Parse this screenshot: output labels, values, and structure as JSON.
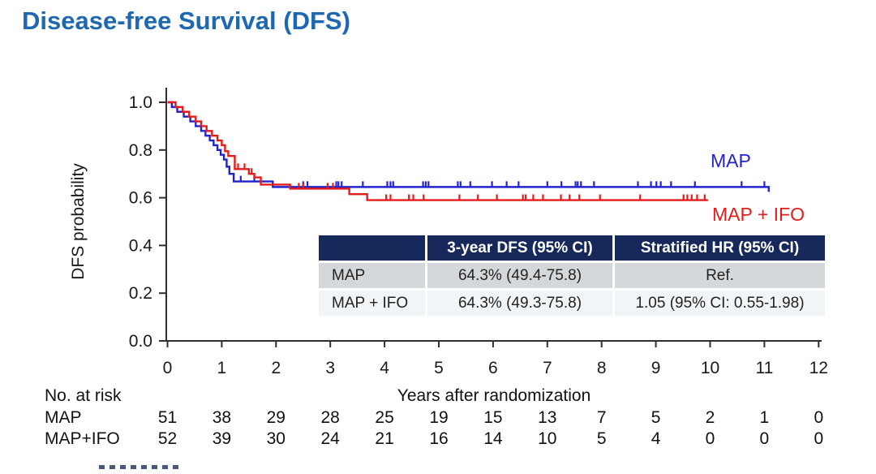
{
  "title": "Disease-free Survival (DFS)",
  "colors": {
    "title_blue": "#1E68B2",
    "map_blue": "#2323CE",
    "map_ifo_red": "#E31B1B",
    "table_header_bg": "#17295B",
    "table_row1_bg": "#D5D8DA",
    "table_row2_bg": "#F2F5F7",
    "axis": "#2f2f2f"
  },
  "legend": {
    "map": "MAP",
    "map_ifo": "MAP + IFO"
  },
  "summary_table": {
    "headers": [
      "",
      "3-year DFS (95% CI)",
      "Stratified HR (95% CI)"
    ],
    "rows": [
      {
        "cells": [
          "MAP",
          "64.3% (49.4-75.8)",
          "Ref."
        ]
      },
      {
        "cells": [
          "MAP + IFO",
          "64.3% (49.3-75.8)",
          "1.05 (95% CI: 0.55-1.98)"
        ]
      }
    ]
  },
  "chart_data": {
    "type": "line",
    "subtype": "kaplan-meier-step",
    "title": "",
    "xlabel": "Years after randomization",
    "ylabel": "DFS probability",
    "xlim": [
      0,
      12
    ],
    "ylim": [
      0.0,
      1.0
    ],
    "x_ticks": [
      0,
      1,
      2,
      3,
      4,
      5,
      6,
      7,
      8,
      9,
      10,
      11,
      12
    ],
    "y_ticks": [
      0.0,
      0.2,
      0.4,
      0.6,
      0.8,
      1.0
    ],
    "grid": false,
    "legend_position": "right-of-curves",
    "series": [
      {
        "name": "MAP",
        "color": "#2323CE",
        "steps": [
          [
            0,
            1.0
          ],
          [
            0.08,
            0.98
          ],
          [
            0.18,
            0.96
          ],
          [
            0.3,
            0.94
          ],
          [
            0.42,
            0.92
          ],
          [
            0.52,
            0.9
          ],
          [
            0.62,
            0.88
          ],
          [
            0.7,
            0.86
          ],
          [
            0.78,
            0.84
          ],
          [
            0.85,
            0.82
          ],
          [
            0.92,
            0.8
          ],
          [
            0.98,
            0.78
          ],
          [
            1.04,
            0.76
          ],
          [
            1.09,
            0.73
          ],
          [
            1.14,
            0.7
          ],
          [
            1.22,
            0.668
          ],
          [
            1.94,
            0.645
          ]
        ],
        "end_x": 11.08,
        "end_hook_down": true,
        "censor_x": [
          1.35,
          1.6,
          2.5,
          2.58,
          3.11,
          3.15,
          3.21,
          3.6,
          4.05,
          4.11,
          4.16,
          4.71,
          4.76,
          4.81,
          5.35,
          5.4,
          5.58,
          5.98,
          6.25,
          6.47,
          7.0,
          7.26,
          7.52,
          7.56,
          7.62,
          7.86,
          8.67,
          8.91,
          9.01,
          9.09,
          9.28,
          9.72,
          10.58,
          11.0
        ]
      },
      {
        "name": "MAP + IFO",
        "color": "#E31B1B",
        "steps": [
          [
            0,
            1.0
          ],
          [
            0.15,
            0.98
          ],
          [
            0.28,
            0.96
          ],
          [
            0.4,
            0.94
          ],
          [
            0.52,
            0.92
          ],
          [
            0.62,
            0.9
          ],
          [
            0.72,
            0.88
          ],
          [
            0.82,
            0.86
          ],
          [
            0.92,
            0.84
          ],
          [
            1.0,
            0.82
          ],
          [
            1.06,
            0.795
          ],
          [
            1.12,
            0.775
          ],
          [
            1.24,
            0.72
          ],
          [
            1.5,
            0.7
          ],
          [
            1.6,
            0.685
          ],
          [
            1.72,
            0.655
          ],
          [
            2.26,
            0.638
          ],
          [
            3.35,
            0.615
          ],
          [
            3.68,
            0.59
          ]
        ],
        "end_x": 9.96,
        "end_hook_down": false,
        "censor_x": [
          1.3,
          1.42,
          1.55,
          2.42,
          2.5,
          2.95,
          3.05,
          4.03,
          4.11,
          4.45,
          4.53,
          4.72,
          5.38,
          5.72,
          6.07,
          6.55,
          6.6,
          6.74,
          6.92,
          7.25,
          7.41,
          7.59,
          7.97,
          8.71,
          9.51,
          9.58,
          9.66,
          9.76,
          9.9
        ]
      }
    ],
    "risk_table": {
      "label": "No. at risk",
      "rows": [
        {
          "name": "MAP",
          "values": [
            51,
            38,
            29,
            28,
            25,
            19,
            15,
            13,
            7,
            5,
            2,
            1,
            0
          ]
        },
        {
          "name": "MAP+IFO",
          "values": [
            52,
            39,
            30,
            24,
            21,
            16,
            14,
            10,
            5,
            4,
            0,
            0,
            0
          ]
        }
      ]
    }
  }
}
